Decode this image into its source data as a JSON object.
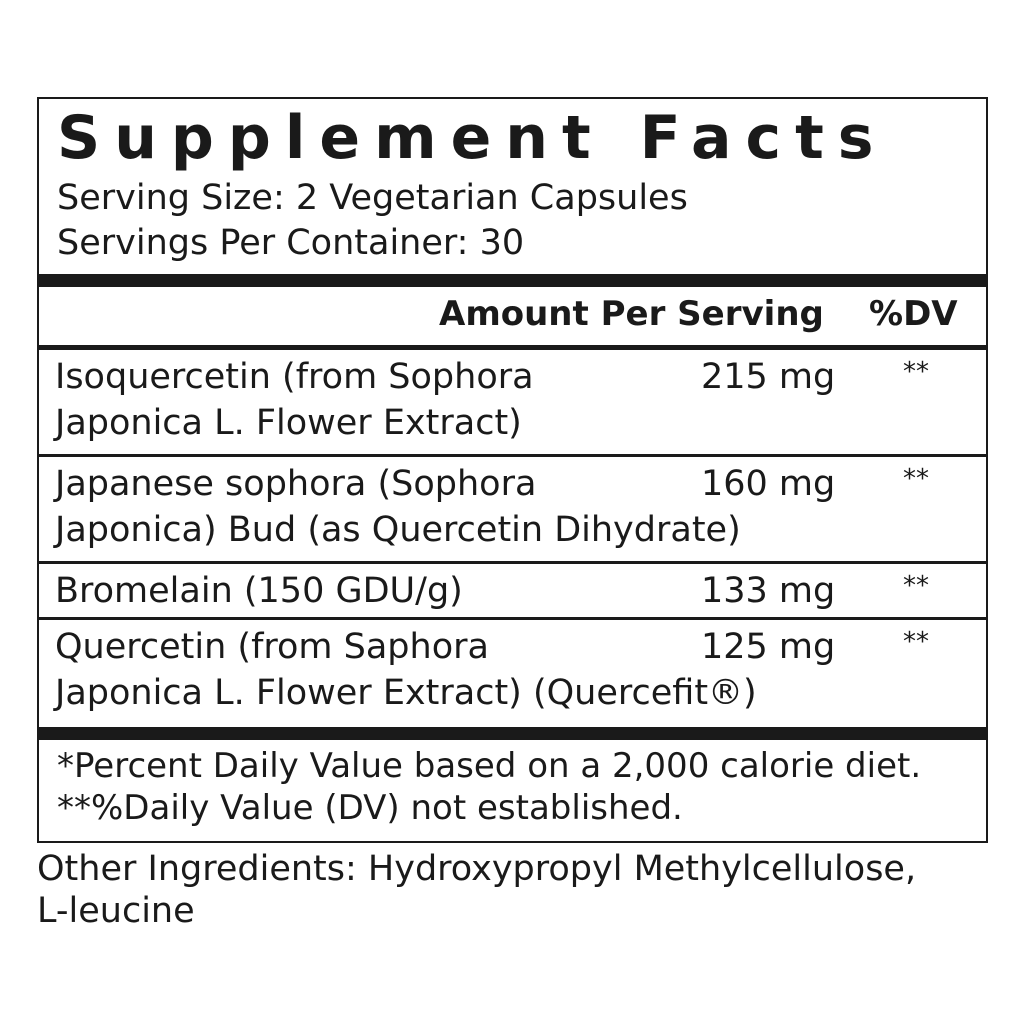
{
  "title": "Supplement Facts",
  "serving_size": "Serving Size: 2 Vegetarian Capsules",
  "servings_per_container": "Servings Per Container: 30",
  "header": {
    "amount": "Amount Per Serving",
    "dv": "%DV"
  },
  "rows": [
    {
      "name_line1": "Isoquercetin (from Sophora",
      "name_line2": "Japonica L. Flower Extract)",
      "amount": "215 mg",
      "dv": "**"
    },
    {
      "name_line1": "Japanese sophora (Sophora",
      "name_line2": "Japonica) Bud (as Quercetin Dihydrate)",
      "amount": "160 mg",
      "dv": "**"
    },
    {
      "name_line1": "Bromelain (150 GDU/g)",
      "name_line2": "",
      "amount": "133 mg",
      "dv": "**"
    },
    {
      "name_line1": "Quercetin (from Saphora",
      "name_line2": "Japonica L. Flower Extract) (Quercefit®)",
      "amount": "125 mg",
      "dv": "**"
    }
  ],
  "footnotes": [
    "*Percent Daily Value based on a 2,000 calorie diet.",
    "**%Daily Value (DV) not established."
  ],
  "other_ingredients": [
    "Other Ingredients: Hydroxypropyl Methylcellulose,",
    "L-leucine"
  ]
}
